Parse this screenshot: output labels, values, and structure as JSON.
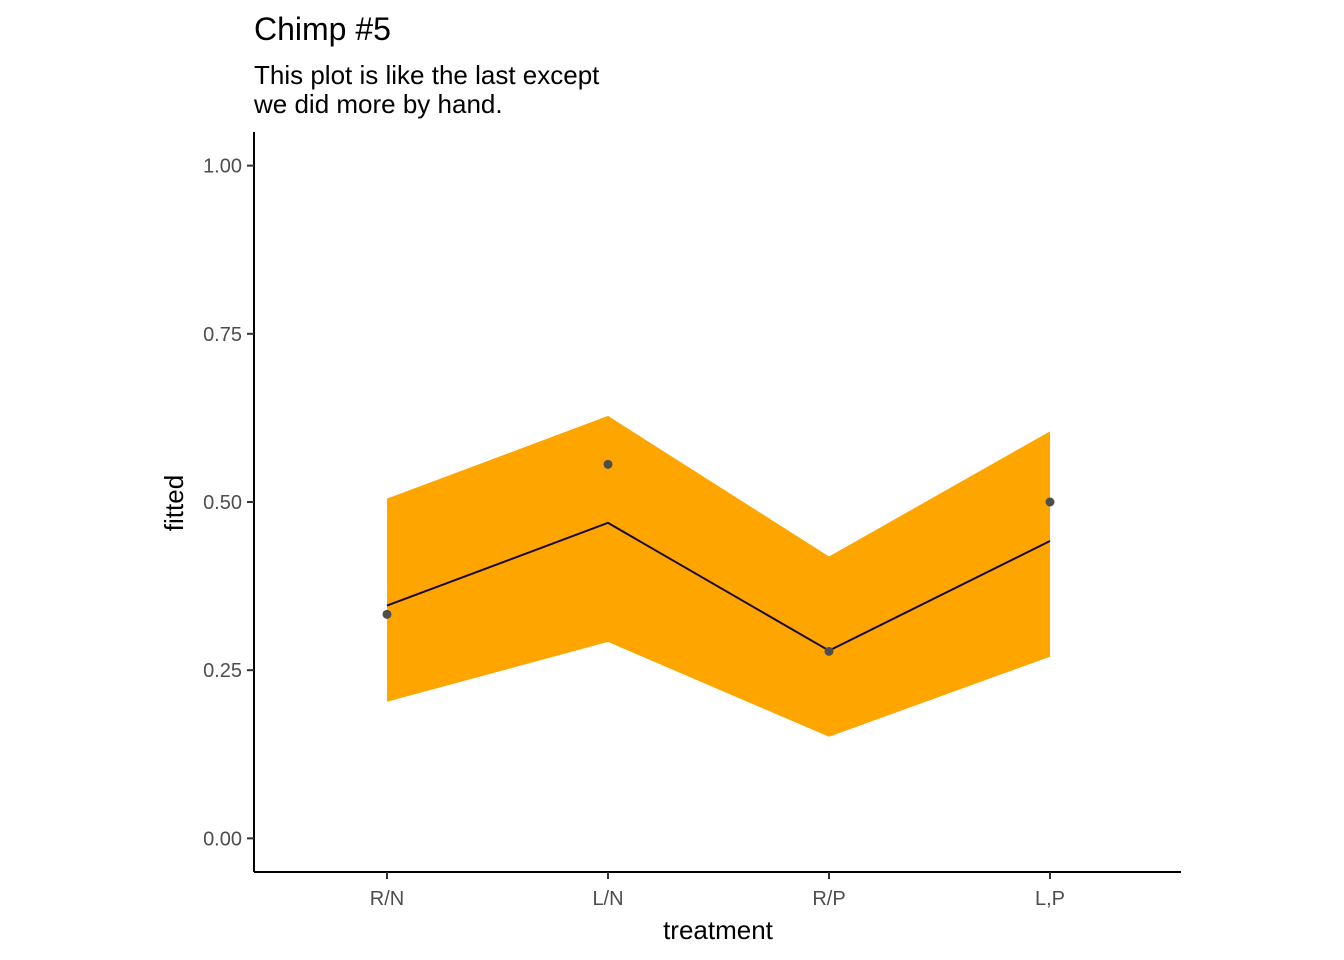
{
  "chart_data": {
    "type": "line",
    "title": "Chimp #5",
    "subtitle": [
      "This plot is like the last except",
      "we did more by hand."
    ],
    "xlabel": "treatment",
    "ylabel": "fitted",
    "categories": [
      "R/N",
      "L/N",
      "R/P",
      "L,P"
    ],
    "ylim": [
      -0.05,
      1.05
    ],
    "yticks": [
      0.0,
      0.25,
      0.5,
      0.75,
      1.0
    ],
    "ytick_labels": [
      "0.00",
      "0.25",
      "0.50",
      "0.75",
      "1.00"
    ],
    "ribbon": {
      "lower": [
        0.203,
        0.292,
        0.151,
        0.27
      ],
      "upper": [
        0.505,
        0.628,
        0.419,
        0.605
      ]
    },
    "fitted_line": [
      0.346,
      0.469,
      0.279,
      0.442
    ],
    "observed_points": [
      0.333,
      0.556,
      0.278,
      0.5
    ],
    "grid": false,
    "legend": "none",
    "colors": {
      "ribbon": "#FFA500",
      "line": "#1a0a33",
      "points": "#4d4d4d",
      "axis": "#000000"
    }
  }
}
